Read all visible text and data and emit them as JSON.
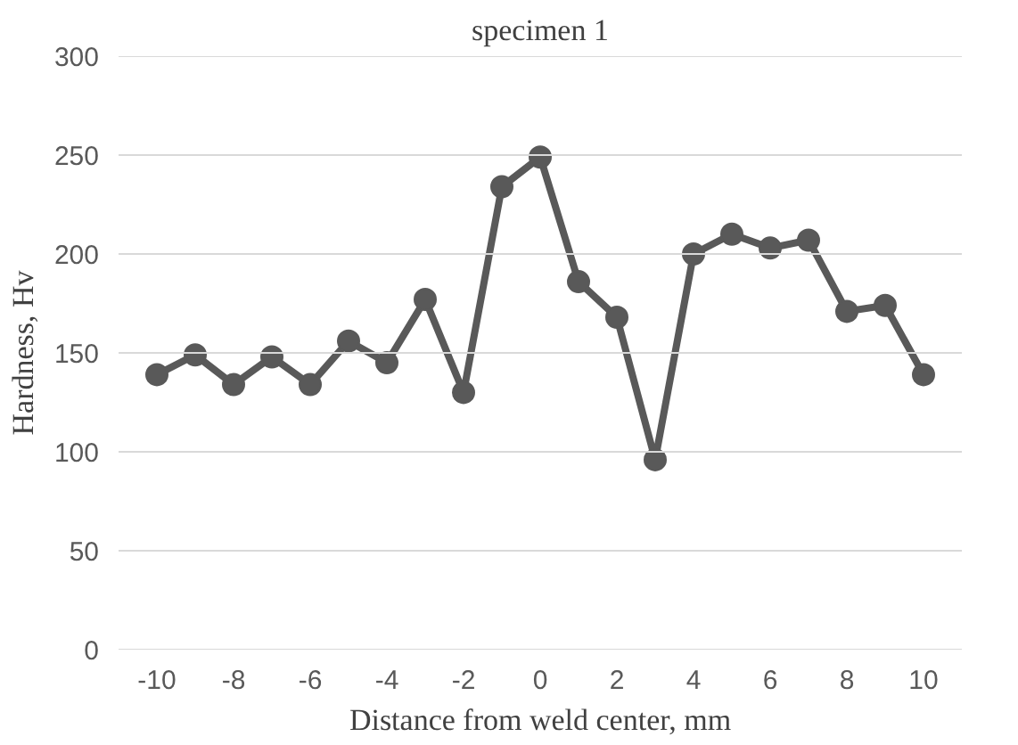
{
  "chart_data": {
    "type": "line",
    "title": "specimen 1",
    "xlabel": "Distance from weld center, mm",
    "ylabel": "Hardness, Hv",
    "x": [
      -10,
      -9,
      -8,
      -7,
      -6,
      -5,
      -4,
      -3,
      -2,
      -1,
      0,
      1,
      2,
      3,
      4,
      5,
      6,
      7,
      8,
      9,
      10
    ],
    "series": [
      {
        "color": "#595959",
        "values": [
          139,
          149,
          134,
          148,
          134,
          156,
          145,
          177,
          130,
          234,
          249,
          186,
          168,
          96,
          200,
          210,
          203,
          207,
          171,
          174,
          139
        ]
      }
    ],
    "xlim": [
      -11,
      11
    ],
    "xticks": [
      -10,
      -8,
      -6,
      -4,
      -2,
      0,
      2,
      4,
      6,
      8,
      10
    ],
    "ylim": [
      0,
      300
    ],
    "yticks": [
      0,
      50,
      100,
      150,
      200,
      250,
      300
    ],
    "grid": "y",
    "marker": "circle",
    "line_style": "solid"
  }
}
